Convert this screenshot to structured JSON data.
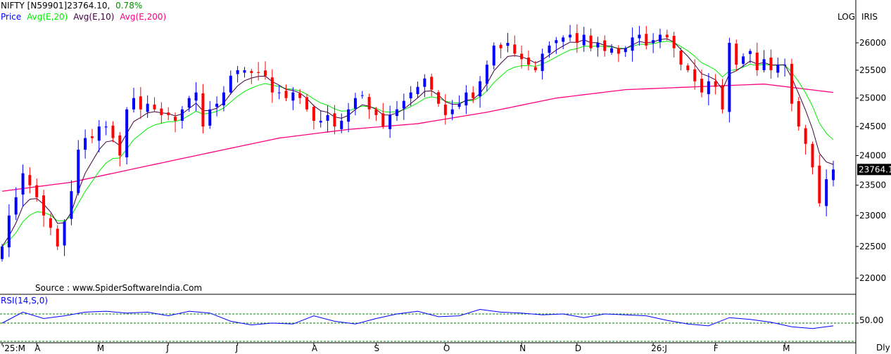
{
  "header": {
    "symbol": "NIFTY [N59901]",
    "last": "23764.10,",
    "change": "0.78%",
    "legend": {
      "price": "Price",
      "ema20": "Avg(E,20)",
      "ema10": "Avg(E,10)",
      "ema200": "Avg(E,200)"
    },
    "log_label": "LOG",
    "iris_label": "IRIS",
    "source": "Source : www.SpiderSoftwareIndia.Com",
    "rsi_label": "RSI(14,S,0)",
    "period_label": "Dly"
  },
  "colors": {
    "up": "#0000ff",
    "down": "#ff0000",
    "ema20": "#00ee00",
    "ema10": "#400040",
    "ema200": "#ff0080",
    "rsi": "#0000ff",
    "grid_dash": "#008000"
  },
  "chart_data": {
    "type": "candlestick",
    "title": "NIFTY [N59901]",
    "scale": "log",
    "ylim": [
      21800,
      26400
    ],
    "yticks": [
      "26000",
      "25500",
      "25000",
      "24500",
      "24000",
      "23500",
      "23000",
      "22500",
      "22000"
    ],
    "last_price_label": "23764.1",
    "last_price": 23764.1,
    "month_ticks": [
      {
        "label": "'25:M",
        "index": 0
      },
      {
        "label": "A",
        "index": 5
      },
      {
        "label": "M",
        "index": 14
      },
      {
        "label": "J",
        "index": 24
      },
      {
        "label": "J",
        "index": 34
      },
      {
        "label": "A",
        "index": 45
      },
      {
        "label": "S",
        "index": 54
      },
      {
        "label": "O",
        "index": 64
      },
      {
        "label": "N",
        "index": 75
      },
      {
        "label": "D",
        "index": 83
      },
      {
        "label": "26:J",
        "index": 94
      },
      {
        "label": "F",
        "index": 103
      },
      {
        "label": "M",
        "index": 113
      }
    ],
    "closes": [
      22500,
      23000,
      23300,
      23700,
      23500,
      23300,
      23000,
      22800,
      22500,
      22900,
      23400,
      24100,
      24300,
      24300,
      24500,
      24500,
      24300,
      24000,
      24800,
      25000,
      24800,
      24900,
      24800,
      24700,
      24700,
      24600,
      24800,
      25000,
      25100,
      24500,
      24800,
      24900,
      25100,
      25400,
      25500,
      25500,
      25450,
      25450,
      25400,
      25100,
      25100,
      25000,
      25100,
      25000,
      24800,
      24600,
      24600,
      24700,
      24500,
      24600,
      24800,
      25000,
      25050,
      24800,
      24700,
      24500,
      24700,
      24800,
      24950,
      25100,
      25200,
      25350,
      25150,
      24900,
      24700,
      24800,
      24900,
      25100,
      25000,
      25300,
      25600,
      25950,
      25900,
      26000,
      25800,
      25700,
      25600,
      25500,
      25800,
      25950,
      26050,
      26100,
      26150,
      26000,
      26150,
      25900,
      26000,
      25850,
      25900,
      25800,
      25900,
      26100,
      26150,
      25950,
      26050,
      26150,
      26100,
      25900,
      25600,
      25500,
      25300,
      25100,
      25300,
      25200,
      24800,
      26000,
      25600,
      25750,
      25850,
      25500,
      25700,
      25500,
      25600,
      25600,
      24900,
      24500,
      24200,
      23800,
      23200,
      23600,
      23764.1
    ],
    "ema200": [
      23400,
      23550,
      23800,
      24050,
      24300,
      24450,
      24550,
      24750,
      25000,
      25150,
      25200,
      25250,
      25100
    ],
    "rsi": {
      "label": "RSI(14,S,0)",
      "levels": [
        60,
        50,
        30
      ],
      "tick_label": "50.00",
      "values": [
        50,
        62,
        55,
        58,
        62,
        63,
        61,
        62,
        58,
        63,
        61,
        52,
        48,
        50,
        49,
        58,
        52,
        49,
        55,
        60,
        63,
        57,
        58,
        65,
        62,
        61,
        59,
        60,
        56,
        60,
        59,
        58,
        53,
        49,
        47,
        56,
        54,
        51,
        46,
        44,
        47
      ]
    }
  }
}
